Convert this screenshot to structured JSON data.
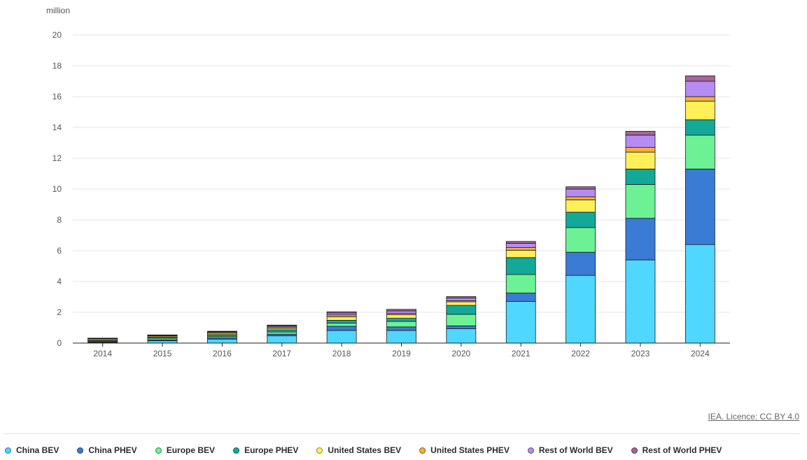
{
  "chart_data": {
    "type": "bar",
    "stacked": true,
    "unit_label": "million",
    "categories": [
      "2014",
      "2015",
      "2016",
      "2017",
      "2018",
      "2019",
      "2020",
      "2021",
      "2022",
      "2023",
      "2024"
    ],
    "ylim": [
      0,
      20
    ],
    "yticks": [
      0,
      2,
      4,
      6,
      8,
      10,
      12,
      14,
      16,
      18,
      20
    ],
    "grid": true,
    "legend_position": "bottom",
    "series": [
      {
        "name": "China BEV",
        "color": "#4fd7ff",
        "values": [
          0.05,
          0.15,
          0.26,
          0.47,
          0.82,
          0.82,
          0.93,
          2.7,
          4.4,
          5.4,
          6.4
        ]
      },
      {
        "name": "China PHEV",
        "color": "#3a7bd5",
        "values": [
          0.03,
          0.06,
          0.08,
          0.11,
          0.27,
          0.23,
          0.19,
          0.55,
          1.5,
          2.7,
          4.9
        ]
      },
      {
        "name": "Europe BEV",
        "color": "#6cf295",
        "values": [
          0.05,
          0.1,
          0.1,
          0.14,
          0.2,
          0.36,
          0.75,
          1.2,
          1.6,
          2.2,
          2.2
        ]
      },
      {
        "name": "Europe PHEV",
        "color": "#14a899",
        "values": [
          0.04,
          0.08,
          0.11,
          0.14,
          0.19,
          0.2,
          0.58,
          1.1,
          1.0,
          1.0,
          1.0
        ]
      },
      {
        "name": "United States BEV",
        "color": "#fff05a",
        "values": [
          0.07,
          0.07,
          0.09,
          0.1,
          0.23,
          0.23,
          0.23,
          0.48,
          0.8,
          1.1,
          1.2
        ]
      },
      {
        "name": "United States PHEV",
        "color": "#f6ad3a",
        "values": [
          0.05,
          0.04,
          0.07,
          0.09,
          0.12,
          0.09,
          0.07,
          0.17,
          0.2,
          0.3,
          0.3
        ]
      },
      {
        "name": "Rest of World BEV",
        "color": "#b58cf2",
        "values": [
          0.02,
          0.02,
          0.04,
          0.07,
          0.12,
          0.16,
          0.17,
          0.28,
          0.5,
          0.8,
          1.0
        ]
      },
      {
        "name": "Rest of World PHEV",
        "color": "#a5649c",
        "values": [
          0.01,
          0.01,
          0.02,
          0.05,
          0.08,
          0.1,
          0.1,
          0.12,
          0.15,
          0.25,
          0.35
        ]
      }
    ]
  },
  "license": {
    "text": "IEA. Licence: CC BY 4.0"
  },
  "colors": {
    "grid": "#e6e6e6",
    "axis": "#222222",
    "bar_outline": "#1a1a1a"
  }
}
